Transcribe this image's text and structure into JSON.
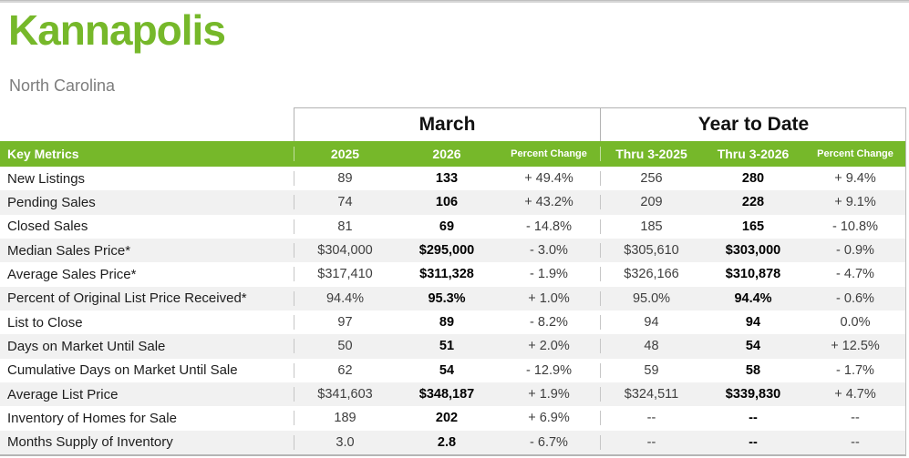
{
  "header": {
    "city": "Kannapolis",
    "state": "North Carolina"
  },
  "colors": {
    "accent_green": "#76b82a",
    "row_stripe": "#f1f1f1",
    "subtitle_gray": "#7d7d7d",
    "border_gray": "#bcbcbc"
  },
  "table": {
    "key_metrics_label": "Key Metrics",
    "groups": [
      {
        "label": "March"
      },
      {
        "label": "Year to Date"
      }
    ],
    "columns": [
      "2025",
      "2026",
      "Percent Change",
      "Thru 3-2025",
      "Thru 3-2026",
      "Percent Change"
    ],
    "rows": [
      {
        "label": "New Listings",
        "m2025": "89",
        "m2026": "133",
        "mchange": "+ 49.4%",
        "y2025": "256",
        "y2026": "280",
        "ychange": "+ 9.4%"
      },
      {
        "label": "Pending Sales",
        "m2025": "74",
        "m2026": "106",
        "mchange": "+ 43.2%",
        "y2025": "209",
        "y2026": "228",
        "ychange": "+ 9.1%"
      },
      {
        "label": "Closed Sales",
        "m2025": "81",
        "m2026": "69",
        "mchange": "- 14.8%",
        "y2025": "185",
        "y2026": "165",
        "ychange": "- 10.8%"
      },
      {
        "label": "Median Sales Price*",
        "m2025": "$304,000",
        "m2026": "$295,000",
        "mchange": "- 3.0%",
        "y2025": "$305,610",
        "y2026": "$303,000",
        "ychange": "- 0.9%"
      },
      {
        "label": "Average Sales Price*",
        "m2025": "$317,410",
        "m2026": "$311,328",
        "mchange": "- 1.9%",
        "y2025": "$326,166",
        "y2026": "$310,878",
        "ychange": "- 4.7%"
      },
      {
        "label": "Percent of Original List Price Received*",
        "m2025": "94.4%",
        "m2026": "95.3%",
        "mchange": "+ 1.0%",
        "y2025": "95.0%",
        "y2026": "94.4%",
        "ychange": "- 0.6%"
      },
      {
        "label": "List to Close",
        "m2025": "97",
        "m2026": "89",
        "mchange": "- 8.2%",
        "y2025": "94",
        "y2026": "94",
        "ychange": "0.0%"
      },
      {
        "label": "Days on Market Until Sale",
        "m2025": "50",
        "m2026": "51",
        "mchange": "+ 2.0%",
        "y2025": "48",
        "y2026": "54",
        "ychange": "+ 12.5%"
      },
      {
        "label": "Cumulative Days on Market Until Sale",
        "m2025": "62",
        "m2026": "54",
        "mchange": "- 12.9%",
        "y2025": "59",
        "y2026": "58",
        "ychange": "- 1.7%"
      },
      {
        "label": "Average List Price",
        "m2025": "$341,603",
        "m2026": "$348,187",
        "mchange": "+ 1.9%",
        "y2025": "$324,511",
        "y2026": "$339,830",
        "ychange": "+ 4.7%"
      },
      {
        "label": "Inventory of Homes for Sale",
        "m2025": "189",
        "m2026": "202",
        "mchange": "+ 6.9%",
        "y2025": "--",
        "y2026": "--",
        "ychange": "--"
      },
      {
        "label": "Months Supply of Inventory",
        "m2025": "3.0",
        "m2026": "2.8",
        "mchange": "- 6.7%",
        "y2025": "--",
        "y2026": "--",
        "ychange": "--"
      }
    ]
  }
}
